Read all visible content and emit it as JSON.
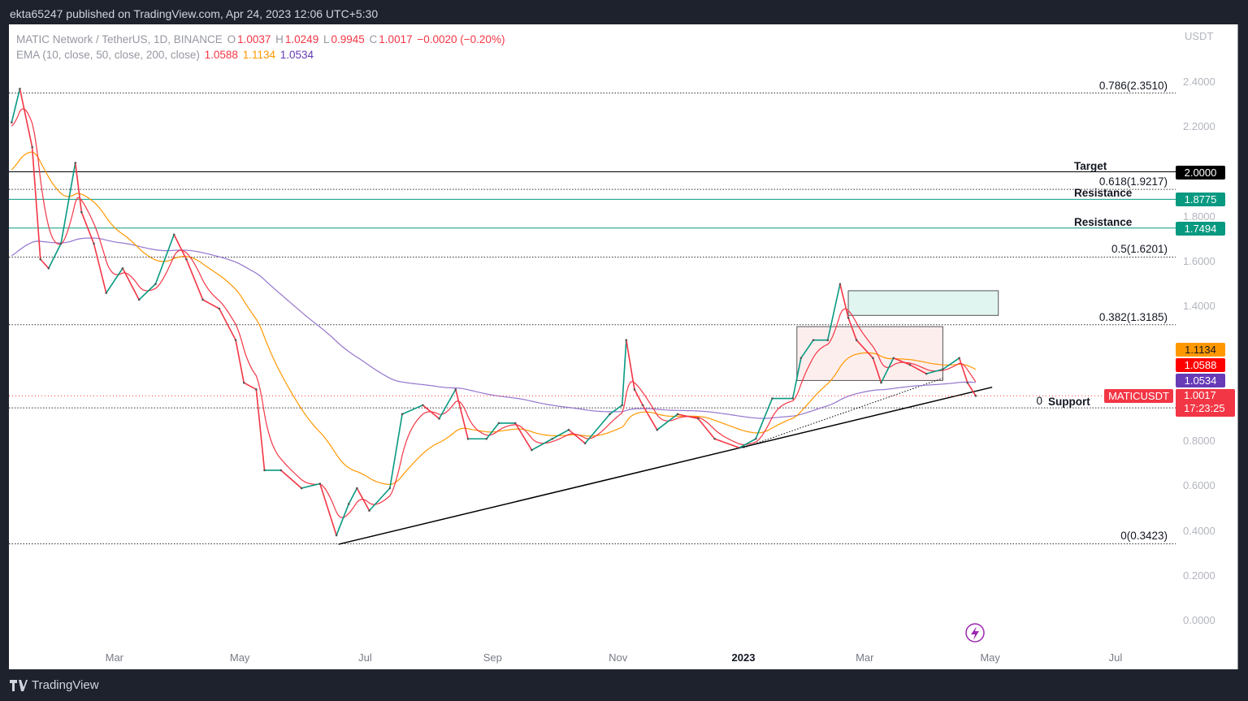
{
  "header": {
    "published": "ekta65247 published on TradingView.com, Apr 24, 2023 12:06 UTC+5:30"
  },
  "legend": {
    "symbol": "MATIC Network / TetherUS, 1D, BINANCE",
    "o_label": "O",
    "o": "1.0037",
    "h_label": "H",
    "h": "1.0249",
    "l_label": "L",
    "l": "0.9945",
    "c_label": "C",
    "c": "1.0017",
    "change": "−0.0020 (−0.20%)",
    "ema_label": "EMA (10, close, 50, close, 200, close)",
    "ema10": "1.0588",
    "ema50": "1.1134",
    "ema200": "1.0534"
  },
  "price_axis": {
    "currency": "USDT",
    "ticks": [
      "2.4000",
      "2.2000",
      "1.8000",
      "1.6000",
      "1.4000",
      "0.8000",
      "0.6000",
      "0.4000",
      "0.2000",
      "0.0000"
    ]
  },
  "time_axis": {
    "ticks": [
      {
        "label": "Mar",
        "date": "2022-03-01"
      },
      {
        "label": "May",
        "date": "2022-05-01"
      },
      {
        "label": "Jul",
        "date": "2022-07-01"
      },
      {
        "label": "Sep",
        "date": "2022-09-01"
      },
      {
        "label": "Nov",
        "date": "2022-11-01"
      },
      {
        "label": "2023",
        "date": "2023-01-01",
        "bold": true
      },
      {
        "label": "Mar",
        "date": "2023-03-01"
      },
      {
        "label": "May",
        "date": "2023-05-01"
      },
      {
        "label": "Jul",
        "date": "2023-07-01"
      }
    ]
  },
  "price_tags": [
    {
      "text": "1.1134",
      "color": "#ff9800",
      "text_color": "#131722"
    },
    {
      "text": "1.0588",
      "color": "#ff0000",
      "text_color": "#ffffff"
    },
    {
      "text": "1.0534",
      "color": "#673ab7",
      "text_color": "#ffffff"
    }
  ],
  "last_price": {
    "symbol": "MATICUSDT",
    "price": "1.0017",
    "countdown": "17:23:25",
    "color": "#f23645"
  },
  "chart_data": {
    "type": "line",
    "title": "",
    "ylim": [
      0,
      2.45
    ],
    "xlim": [
      "2022-01-07",
      "2023-07-25"
    ],
    "log_scale": false,
    "grid": false,
    "colors": {
      "up": "#089981",
      "down": "#f23645",
      "ema10": "#f23645",
      "ema50": "#ff9800",
      "ema200": "#9575cd"
    },
    "series": [
      {
        "name": "MATICUSDT",
        "points": [
          [
            "2022-01-10",
            2.22
          ],
          [
            "2022-01-14",
            2.37
          ],
          [
            "2022-01-20",
            2.11
          ],
          [
            "2022-01-24",
            1.61
          ],
          [
            "2022-01-28",
            1.57
          ],
          [
            "2022-02-03",
            1.68
          ],
          [
            "2022-02-10",
            2.04
          ],
          [
            "2022-02-13",
            1.82
          ],
          [
            "2022-02-19",
            1.68
          ],
          [
            "2022-02-25",
            1.46
          ],
          [
            "2022-03-05",
            1.57
          ],
          [
            "2022-03-13",
            1.43
          ],
          [
            "2022-03-21",
            1.5
          ],
          [
            "2022-03-30",
            1.72
          ],
          [
            "2022-04-05",
            1.61
          ],
          [
            "2022-04-13",
            1.43
          ],
          [
            "2022-04-21",
            1.39
          ],
          [
            "2022-04-29",
            1.25
          ],
          [
            "2022-05-03",
            1.06
          ],
          [
            "2022-05-09",
            1.03
          ],
          [
            "2022-05-13",
            0.67
          ],
          [
            "2022-05-21",
            0.67
          ],
          [
            "2022-05-31",
            0.59
          ],
          [
            "2022-06-09",
            0.61
          ],
          [
            "2022-06-17",
            0.38
          ],
          [
            "2022-06-23",
            0.52
          ],
          [
            "2022-06-27",
            0.59
          ],
          [
            "2022-07-03",
            0.49
          ],
          [
            "2022-07-13",
            0.59
          ],
          [
            "2022-07-19",
            0.92
          ],
          [
            "2022-07-29",
            0.96
          ],
          [
            "2022-08-06",
            0.9
          ],
          [
            "2022-08-14",
            1.03
          ],
          [
            "2022-08-20",
            0.81
          ],
          [
            "2022-08-29",
            0.81
          ],
          [
            "2022-09-04",
            0.88
          ],
          [
            "2022-09-12",
            0.88
          ],
          [
            "2022-09-20",
            0.76
          ],
          [
            "2022-09-30",
            0.81
          ],
          [
            "2022-10-08",
            0.85
          ],
          [
            "2022-10-16",
            0.79
          ],
          [
            "2022-10-28",
            0.92
          ],
          [
            "2022-11-03",
            0.96
          ],
          [
            "2022-11-05",
            1.25
          ],
          [
            "2022-11-09",
            1.03
          ],
          [
            "2022-11-13",
            0.96
          ],
          [
            "2022-11-20",
            0.85
          ],
          [
            "2022-11-30",
            0.92
          ],
          [
            "2022-12-10",
            0.9
          ],
          [
            "2022-12-18",
            0.81
          ],
          [
            "2022-12-30",
            0.77
          ],
          [
            "2023-01-07",
            0.81
          ],
          [
            "2023-01-15",
            0.99
          ],
          [
            "2023-01-25",
            0.99
          ],
          [
            "2023-01-29",
            1.17
          ],
          [
            "2023-02-04",
            1.25
          ],
          [
            "2023-02-11",
            1.25
          ],
          [
            "2023-02-17",
            1.5
          ],
          [
            "2023-02-21",
            1.35
          ],
          [
            "2023-02-25",
            1.25
          ],
          [
            "2023-03-05",
            1.17
          ],
          [
            "2023-03-09",
            1.06
          ],
          [
            "2023-03-15",
            1.17
          ],
          [
            "2023-03-23",
            1.14
          ],
          [
            "2023-03-31",
            1.1
          ],
          [
            "2023-04-08",
            1.12
          ],
          [
            "2023-04-16",
            1.17
          ],
          [
            "2023-04-20",
            1.06
          ],
          [
            "2023-04-24",
            1.0017
          ]
        ]
      }
    ],
    "indicators": [
      {
        "name": "EMA 10",
        "last": 1.0588
      },
      {
        "name": "EMA 50",
        "last": 1.1134
      },
      {
        "name": "EMA 200",
        "last": 1.0534
      }
    ],
    "fib_levels": [
      {
        "label": "0.786(2.3510)",
        "price": 2.351
      },
      {
        "label": "0.618(1.9217)",
        "price": 1.9217
      },
      {
        "label": "0.5(1.6201)",
        "price": 1.6201
      },
      {
        "label": "0.382(1.3185)",
        "price": 1.3185
      },
      {
        "label": "0",
        "price": 0.948
      },
      {
        "label": "0(0.3423)",
        "price": 0.3423
      }
    ],
    "horizontal_lines": [
      {
        "label": "Target",
        "price": 2.0,
        "tag": "2.0000",
        "color": "#000000"
      },
      {
        "label": "Resistance",
        "price": 1.8775,
        "tag": "1.8775",
        "color": "#089981"
      },
      {
        "label": "Resistance",
        "price": 1.7494,
        "tag": "1.7494",
        "color": "#089981"
      },
      {
        "label": "Support",
        "price": 0.948
      }
    ],
    "trendline": {
      "from": [
        "2022-06-18",
        0.34
      ],
      "to": [
        "2023-05-02",
        1.04
      ]
    },
    "dotted_trendline": {
      "from": [
        "2023-01-01",
        0.77
      ],
      "to": [
        "2023-04-08",
        1.08
      ]
    },
    "boxes": [
      {
        "name": "consolidation",
        "from": [
          "2023-01-27",
          1.31
        ],
        "to": [
          "2023-04-08",
          1.07
        ],
        "fill": "#fdeeee",
        "stroke": "#555"
      },
      {
        "name": "target-zone",
        "from": [
          "2023-02-21",
          1.47
        ],
        "to": [
          "2023-05-05",
          1.36
        ],
        "fill": "#e0f4f0",
        "stroke": "#555"
      }
    ]
  },
  "footer": {
    "brand": "TradingView"
  }
}
